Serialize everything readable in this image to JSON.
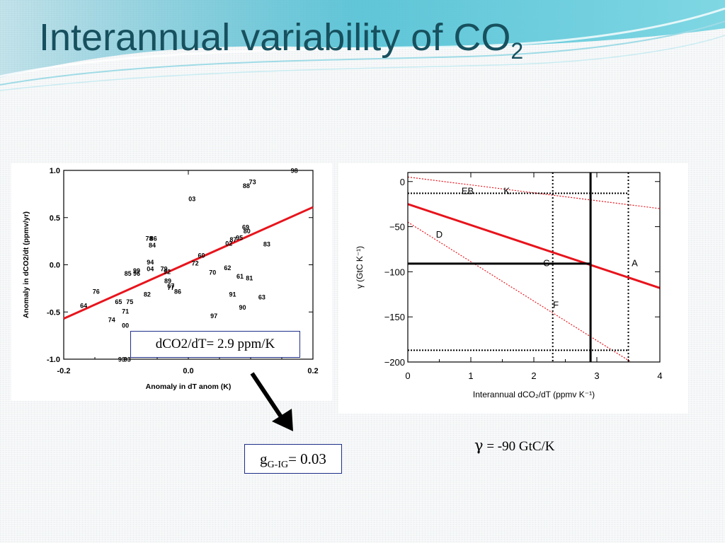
{
  "slide": {
    "title": "Interannual variability of CO",
    "title_subscript": "2",
    "slope_box": "dCO2/dT= 2.9 ppm/K",
    "g_box": {
      "g": "g",
      "sub": "G-IG",
      "rest": "= 0.03"
    },
    "gamma_caption": {
      "symbol": "γ",
      "text": " = -90 GtC/K"
    }
  },
  "chart_data": [
    {
      "type": "scatter",
      "xlabel": "Anomaly in dT anom (K)",
      "ylabel": "Anomaly in dCO2/dt (ppmv/yr)",
      "xlim": [
        -0.2,
        0.2
      ],
      "ylim": [
        -1.0,
        1.0
      ],
      "xticks": [
        "-0.2",
        "0.0",
        "0.2"
      ],
      "yticks": [
        "1.0",
        "0.5",
        "0.0",
        "-0.5",
        "-1.0"
      ],
      "points": [
        {
          "label": "98",
          "x": 0.17,
          "y": 1.0
        },
        {
          "label": "73",
          "x": 0.103,
          "y": 0.88
        },
        {
          "label": "88",
          "x": 0.093,
          "y": 0.84
        },
        {
          "label": "03",
          "x": 0.006,
          "y": 0.7
        },
        {
          "label": "69",
          "x": 0.092,
          "y": 0.4
        },
        {
          "label": "80",
          "x": 0.094,
          "y": 0.36
        },
        {
          "label": "95",
          "x": 0.082,
          "y": 0.29
        },
        {
          "label": "87",
          "x": 0.072,
          "y": 0.27
        },
        {
          "label": "02",
          "x": 0.065,
          "y": 0.23
        },
        {
          "label": "83",
          "x": 0.126,
          "y": 0.22
        },
        {
          "label": "78",
          "x": -0.063,
          "y": 0.28
        },
        {
          "label": "86",
          "x": -0.056,
          "y": 0.28
        },
        {
          "label": "84",
          "x": -0.058,
          "y": 0.21
        },
        {
          "label": "60",
          "x": 0.021,
          "y": 0.1
        },
        {
          "label": "72",
          "x": 0.011,
          "y": 0.02
        },
        {
          "label": "94",
          "x": -0.061,
          "y": 0.03
        },
        {
          "label": "04",
          "x": -0.061,
          "y": -0.04
        },
        {
          "label": "79",
          "x": -0.039,
          "y": -0.04
        },
        {
          "label": "92",
          "x": -0.034,
          "y": -0.07
        },
        {
          "label": "99",
          "x": -0.083,
          "y": -0.06
        },
        {
          "label": "85",
          "x": -0.097,
          "y": -0.09
        },
        {
          "label": "96",
          "x": -0.083,
          "y": -0.09
        },
        {
          "label": "62",
          "x": 0.063,
          "y": -0.03
        },
        {
          "label": "70",
          "x": 0.039,
          "y": -0.08
        },
        {
          "label": "61",
          "x": 0.083,
          "y": -0.12
        },
        {
          "label": "81",
          "x": 0.098,
          "y": -0.14
        },
        {
          "label": "89",
          "x": -0.033,
          "y": -0.17
        },
        {
          "label": "67",
          "x": -0.028,
          "y": -0.22
        },
        {
          "label": "77",
          "x": -0.028,
          "y": -0.24
        },
        {
          "label": "86",
          "x": -0.017,
          "y": -0.28
        },
        {
          "label": "82",
          "x": -0.066,
          "y": -0.31
        },
        {
          "label": "91",
          "x": 0.071,
          "y": -0.31
        },
        {
          "label": "63",
          "x": 0.118,
          "y": -0.34
        },
        {
          "label": "76",
          "x": -0.148,
          "y": -0.28
        },
        {
          "label": "65",
          "x": -0.112,
          "y": -0.39
        },
        {
          "label": "75",
          "x": -0.094,
          "y": -0.39
        },
        {
          "label": "64",
          "x": -0.168,
          "y": -0.43
        },
        {
          "label": "71",
          "x": -0.101,
          "y": -0.49
        },
        {
          "label": "90",
          "x": 0.087,
          "y": -0.45
        },
        {
          "label": "97",
          "x": 0.041,
          "y": -0.54
        },
        {
          "label": "74",
          "x": -0.123,
          "y": -0.58
        },
        {
          "label": "00",
          "x": -0.101,
          "y": -0.64
        },
        {
          "label": "93",
          "x": -0.107,
          "y": -1.0
        },
        {
          "label": "93",
          "x": -0.098,
          "y": -1.0
        }
      ],
      "regression_line": {
        "x": [
          -0.2,
          0.2
        ],
        "y": [
          -0.57,
          0.61
        ],
        "color": "#e8141c"
      }
    },
    {
      "type": "line",
      "xlabel": "Interannual dCO₂/dT (ppmv K⁻¹)",
      "ylabel": "γ (GtC K⁻¹)",
      "xlim": [
        0,
        4
      ],
      "ylim": [
        -200,
        10
      ],
      "xticks": [
        "0",
        "1",
        "2",
        "3",
        "4"
      ],
      "yticks": [
        "0",
        "−50",
        "−100",
        "−150",
        "−200"
      ],
      "main_line": {
        "x": [
          0,
          4
        ],
        "y": [
          -25,
          -118
        ],
        "color": "#e8141c"
      },
      "dotted_red_lines": [
        {
          "x": [
            0,
            4
          ],
          "y": [
            5,
            -30
          ]
        },
        {
          "x": [
            0,
            4
          ],
          "y": [
            -45,
            -220
          ]
        }
      ],
      "vertical_dotted_lines": [
        2.3,
        3.5
      ],
      "horizontal_dotted_lines": [
        -13,
        -187
      ],
      "solid_markers": {
        "x": 2.9,
        "y": -91
      },
      "letters": [
        {
          "label": "EB",
          "x": 0.95,
          "y": -10
        },
        {
          "label": "K",
          "x": 1.57,
          "y": -10
        },
        {
          "label": "D",
          "x": 0.5,
          "y": -58
        },
        {
          "label": "C",
          "x": 2.2,
          "y": -90
        },
        {
          "label": "A",
          "x": 3.6,
          "y": -90
        },
        {
          "label": "F",
          "x": 2.35,
          "y": -136
        }
      ]
    }
  ]
}
